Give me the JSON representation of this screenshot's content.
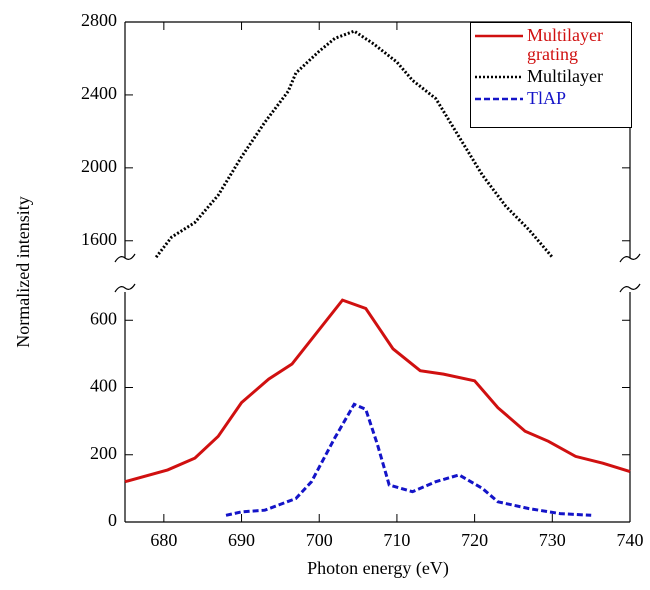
{
  "chart_data": [
    {
      "type": "line",
      "xlim": [
        675,
        740
      ],
      "ylim": [
        1500,
        2800
      ],
      "yticks": [
        1600,
        2000,
        2400,
        2800
      ],
      "series": [
        {
          "name": "Multilayer",
          "color": "#000000",
          "dash": "2,2",
          "x": [
            679,
            681,
            684,
            687,
            690,
            693,
            696,
            697,
            700,
            702,
            704.5,
            707,
            710,
            712,
            715,
            718,
            721,
            724,
            727,
            730
          ],
          "values": [
            1510,
            1620,
            1700,
            1850,
            2060,
            2250,
            2420,
            2520,
            2640,
            2710,
            2750,
            2680,
            2580,
            2480,
            2380,
            2170,
            1960,
            1790,
            1660,
            1510
          ]
        }
      ]
    },
    {
      "type": "line",
      "xlim": [
        675,
        740
      ],
      "ylim": [
        0,
        690
      ],
      "xticks": [
        680,
        690,
        700,
        710,
        720,
        730,
        740
      ],
      "yticks": [
        0,
        200,
        400,
        600
      ],
      "xlabel": "Photon energy (eV)",
      "ylabel": "Normalized intensity",
      "series": [
        {
          "name": "Multilayer grating",
          "color": "#d01010",
          "dash": "none",
          "x": [
            675,
            680.5,
            684,
            687,
            690,
            693.5,
            696.5,
            703,
            706,
            709.5,
            713,
            716,
            720,
            723,
            726.5,
            729.5,
            733,
            736.5,
            740
          ],
          "values": [
            120,
            155,
            190,
            255,
            355,
            425,
            470,
            660,
            635,
            515,
            450,
            440,
            420,
            340,
            270,
            240,
            195,
            175,
            150
          ]
        },
        {
          "name": "TlAP",
          "color": "#1414c8",
          "dash": "6,3",
          "x": [
            688,
            690,
            693,
            697,
            699,
            702,
            704.5,
            706,
            707.5,
            709,
            712,
            715,
            718,
            721,
            723,
            727,
            731,
            735
          ],
          "values": [
            20,
            30,
            35,
            70,
            120,
            250,
            350,
            335,
            230,
            110,
            90,
            120,
            140,
            100,
            60,
            40,
            25,
            20
          ]
        }
      ]
    }
  ]
}
